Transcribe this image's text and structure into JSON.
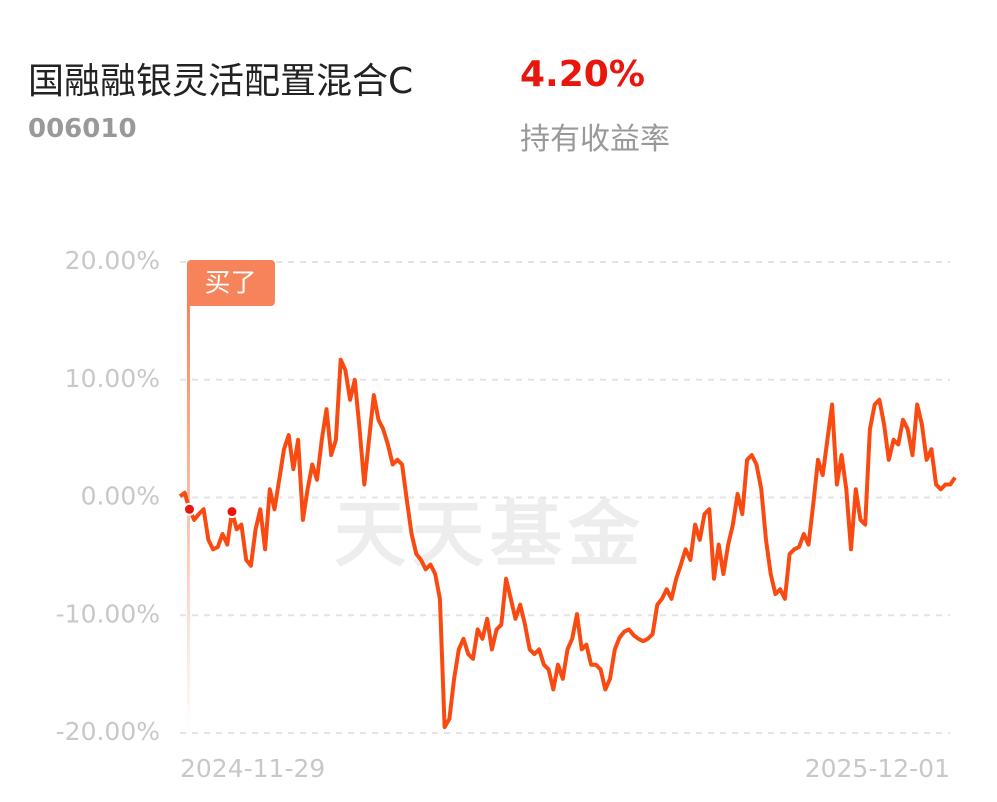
{
  "header": {
    "title": "国融融银灵活配置混合C",
    "code": "006010",
    "return": "4.20%",
    "return_label": "持有收益率"
  },
  "watermark": "天天基金",
  "chart_data": {
    "type": "line",
    "annotation": "买了",
    "categories": [
      "2024-11-29",
      null,
      null,
      null,
      null,
      null,
      null,
      null,
      null,
      null,
      null,
      null,
      null,
      null,
      null,
      null,
      null,
      null,
      null,
      null,
      null,
      null,
      null,
      null,
      null,
      null,
      null,
      null,
      null,
      null,
      null,
      null,
      null,
      null,
      null,
      null,
      null,
      null,
      null,
      null,
      null,
      null,
      null,
      null,
      null,
      null,
      null,
      null,
      null,
      null,
      null,
      null,
      null,
      null,
      null,
      null,
      null,
      null,
      null,
      null,
      null,
      null,
      null,
      null,
      null,
      null,
      null,
      null,
      null,
      null,
      null,
      null,
      null,
      null,
      null,
      null,
      null,
      null,
      null,
      null,
      null,
      null,
      null,
      null,
      null,
      null,
      null,
      null,
      null,
      null,
      null,
      null,
      null,
      null,
      null,
      null,
      null,
      null,
      null,
      null,
      null,
      null,
      null,
      null,
      null,
      null,
      null,
      null,
      null,
      null,
      null,
      null,
      null,
      null,
      null,
      null,
      null,
      null,
      null,
      null,
      null,
      null,
      null,
      null,
      null,
      null,
      null,
      null,
      null,
      null,
      null,
      null,
      null,
      null,
      null,
      null,
      null,
      null,
      null,
      null,
      null,
      null,
      null,
      null,
      null,
      null,
      null,
      null,
      null,
      null,
      null,
      null,
      null,
      null,
      null,
      null,
      null,
      null,
      null,
      null,
      null,
      null,
      null,
      null,
      "2025-12-01"
    ],
    "series": [
      {
        "color": "#f94a12",
        "values": [
          0.1,
          0.4,
          -1.0,
          -1.9,
          -1.4,
          -1.0,
          -3.6,
          -4.4,
          -4.2,
          -3.1,
          -4.0,
          -1.2,
          -2.7,
          -2.3,
          -5.3,
          -5.8,
          -2.7,
          -1.0,
          -4.4,
          0.7,
          -1.0,
          1.5,
          4.1,
          5.3,
          2.4,
          4.9,
          -1.9,
          0.7,
          2.8,
          1.5,
          4.9,
          7.5,
          3.6,
          4.9,
          11.7,
          10.8,
          8.3,
          10.0,
          5.8,
          1.1,
          4.9,
          8.7,
          6.6,
          5.8,
          4.5,
          2.8,
          3.2,
          2.8,
          -0.2,
          -3.1,
          -4.8,
          -5.3,
          -6.1,
          -5.7,
          -6.5,
          -8.6,
          -19.5,
          -18.8,
          -15.4,
          -12.9,
          -12.0,
          -13.3,
          -13.7,
          -11.2,
          -12.0,
          -10.3,
          -12.9,
          -11.2,
          -10.8,
          -6.9,
          -8.6,
          -10.3,
          -9.1,
          -10.8,
          -12.9,
          -13.3,
          -12.9,
          -14.2,
          -14.6,
          -16.3,
          -14.2,
          -15.4,
          -12.9,
          -12.0,
          -9.9,
          -12.9,
          -12.5,
          -14.2,
          -14.2,
          -14.6,
          -16.3,
          -15.4,
          -12.9,
          -11.9,
          -11.4,
          -11.2,
          -11.7,
          -12.0,
          -12.2,
          -12.0,
          -11.6,
          -9.1,
          -8.6,
          -7.8,
          -8.6,
          -6.9,
          -5.7,
          -4.4,
          -5.3,
          -2.3,
          -3.6,
          -1.4,
          -1.0,
          -6.9,
          -4.0,
          -6.5,
          -4.0,
          -2.3,
          0.3,
          -1.4,
          3.2,
          3.6,
          2.8,
          0.7,
          -3.6,
          -6.5,
          -8.2,
          -7.8,
          -8.6,
          -4.8,
          -4.4,
          -4.2,
          -3.1,
          -4.0,
          -0.6,
          3.2,
          1.9,
          4.9,
          7.9,
          1.1,
          3.6,
          0.7,
          -4.4,
          0.7,
          -1.9,
          -2.3,
          5.8,
          7.9,
          8.3,
          6.2,
          3.2,
          4.9,
          4.5,
          6.6,
          5.8,
          3.6,
          7.9,
          6.2,
          3.2,
          4.1,
          1.1,
          0.7,
          1.1,
          1.1,
          1.7
        ]
      }
    ],
    "ylim": [
      -20,
      20
    ],
    "yticks": [
      {
        "value": -20,
        "label": "-20.00%"
      },
      {
        "value": -10,
        "label": "-10.00%"
      },
      {
        "value": 0,
        "label": "0.00%"
      },
      {
        "value": 10,
        "label": "10.00%"
      },
      {
        "value": 20,
        "label": "20.00%"
      }
    ],
    "grid": true
  }
}
